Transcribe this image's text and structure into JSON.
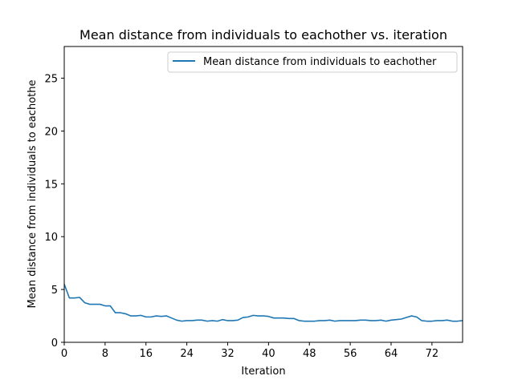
{
  "chart_data": {
    "type": "line",
    "title": "Mean distance from individuals to eachother vs. iteration",
    "xlabel": "Iteration",
    "ylabel": "Mean distance from individuals to eachothe",
    "xlim": [
      0,
      78
    ],
    "ylim": [
      0,
      28
    ],
    "xticks": [
      0,
      8,
      16,
      24,
      32,
      40,
      48,
      56,
      64,
      72
    ],
    "yticks": [
      0,
      5,
      10,
      15,
      20,
      25
    ],
    "grid": false,
    "legend_position": "top-right",
    "series": [
      {
        "name": "Mean distance from individuals to eachother",
        "color": "#1f77b4",
        "x": [
          0,
          1,
          2,
          3,
          4,
          5,
          6,
          7,
          8,
          9,
          10,
          11,
          12,
          13,
          14,
          15,
          16,
          17,
          18,
          19,
          20,
          21,
          22,
          23,
          24,
          25,
          26,
          27,
          28,
          29,
          30,
          31,
          32,
          33,
          34,
          35,
          36,
          37,
          38,
          39,
          40,
          41,
          42,
          43,
          44,
          45,
          46,
          47,
          48,
          49,
          50,
          51,
          52,
          53,
          54,
          55,
          56,
          57,
          58,
          59,
          60,
          61,
          62,
          63,
          64,
          65,
          66,
          67,
          68,
          69,
          70,
          71,
          72,
          73,
          74,
          75,
          76,
          77,
          78
        ],
        "y": [
          5.5,
          4.2,
          4.2,
          4.25,
          3.75,
          3.6,
          3.6,
          3.6,
          3.45,
          3.45,
          2.8,
          2.8,
          2.7,
          2.5,
          2.5,
          2.55,
          2.4,
          2.4,
          2.5,
          2.45,
          2.5,
          2.3,
          2.1,
          2.0,
          2.05,
          2.05,
          2.1,
          2.1,
          2.0,
          2.05,
          2.0,
          2.15,
          2.05,
          2.05,
          2.1,
          2.35,
          2.4,
          2.55,
          2.5,
          2.5,
          2.45,
          2.3,
          2.3,
          2.3,
          2.25,
          2.25,
          2.05,
          2.0,
          2.0,
          2.0,
          2.05,
          2.05,
          2.1,
          2.0,
          2.05,
          2.05,
          2.05,
          2.05,
          2.1,
          2.1,
          2.05,
          2.05,
          2.1,
          2.0,
          2.1,
          2.15,
          2.2,
          2.35,
          2.5,
          2.4,
          2.05,
          2.0,
          2.0,
          2.05,
          2.05,
          2.1,
          2.0,
          2.0,
          2.05
        ]
      }
    ]
  }
}
